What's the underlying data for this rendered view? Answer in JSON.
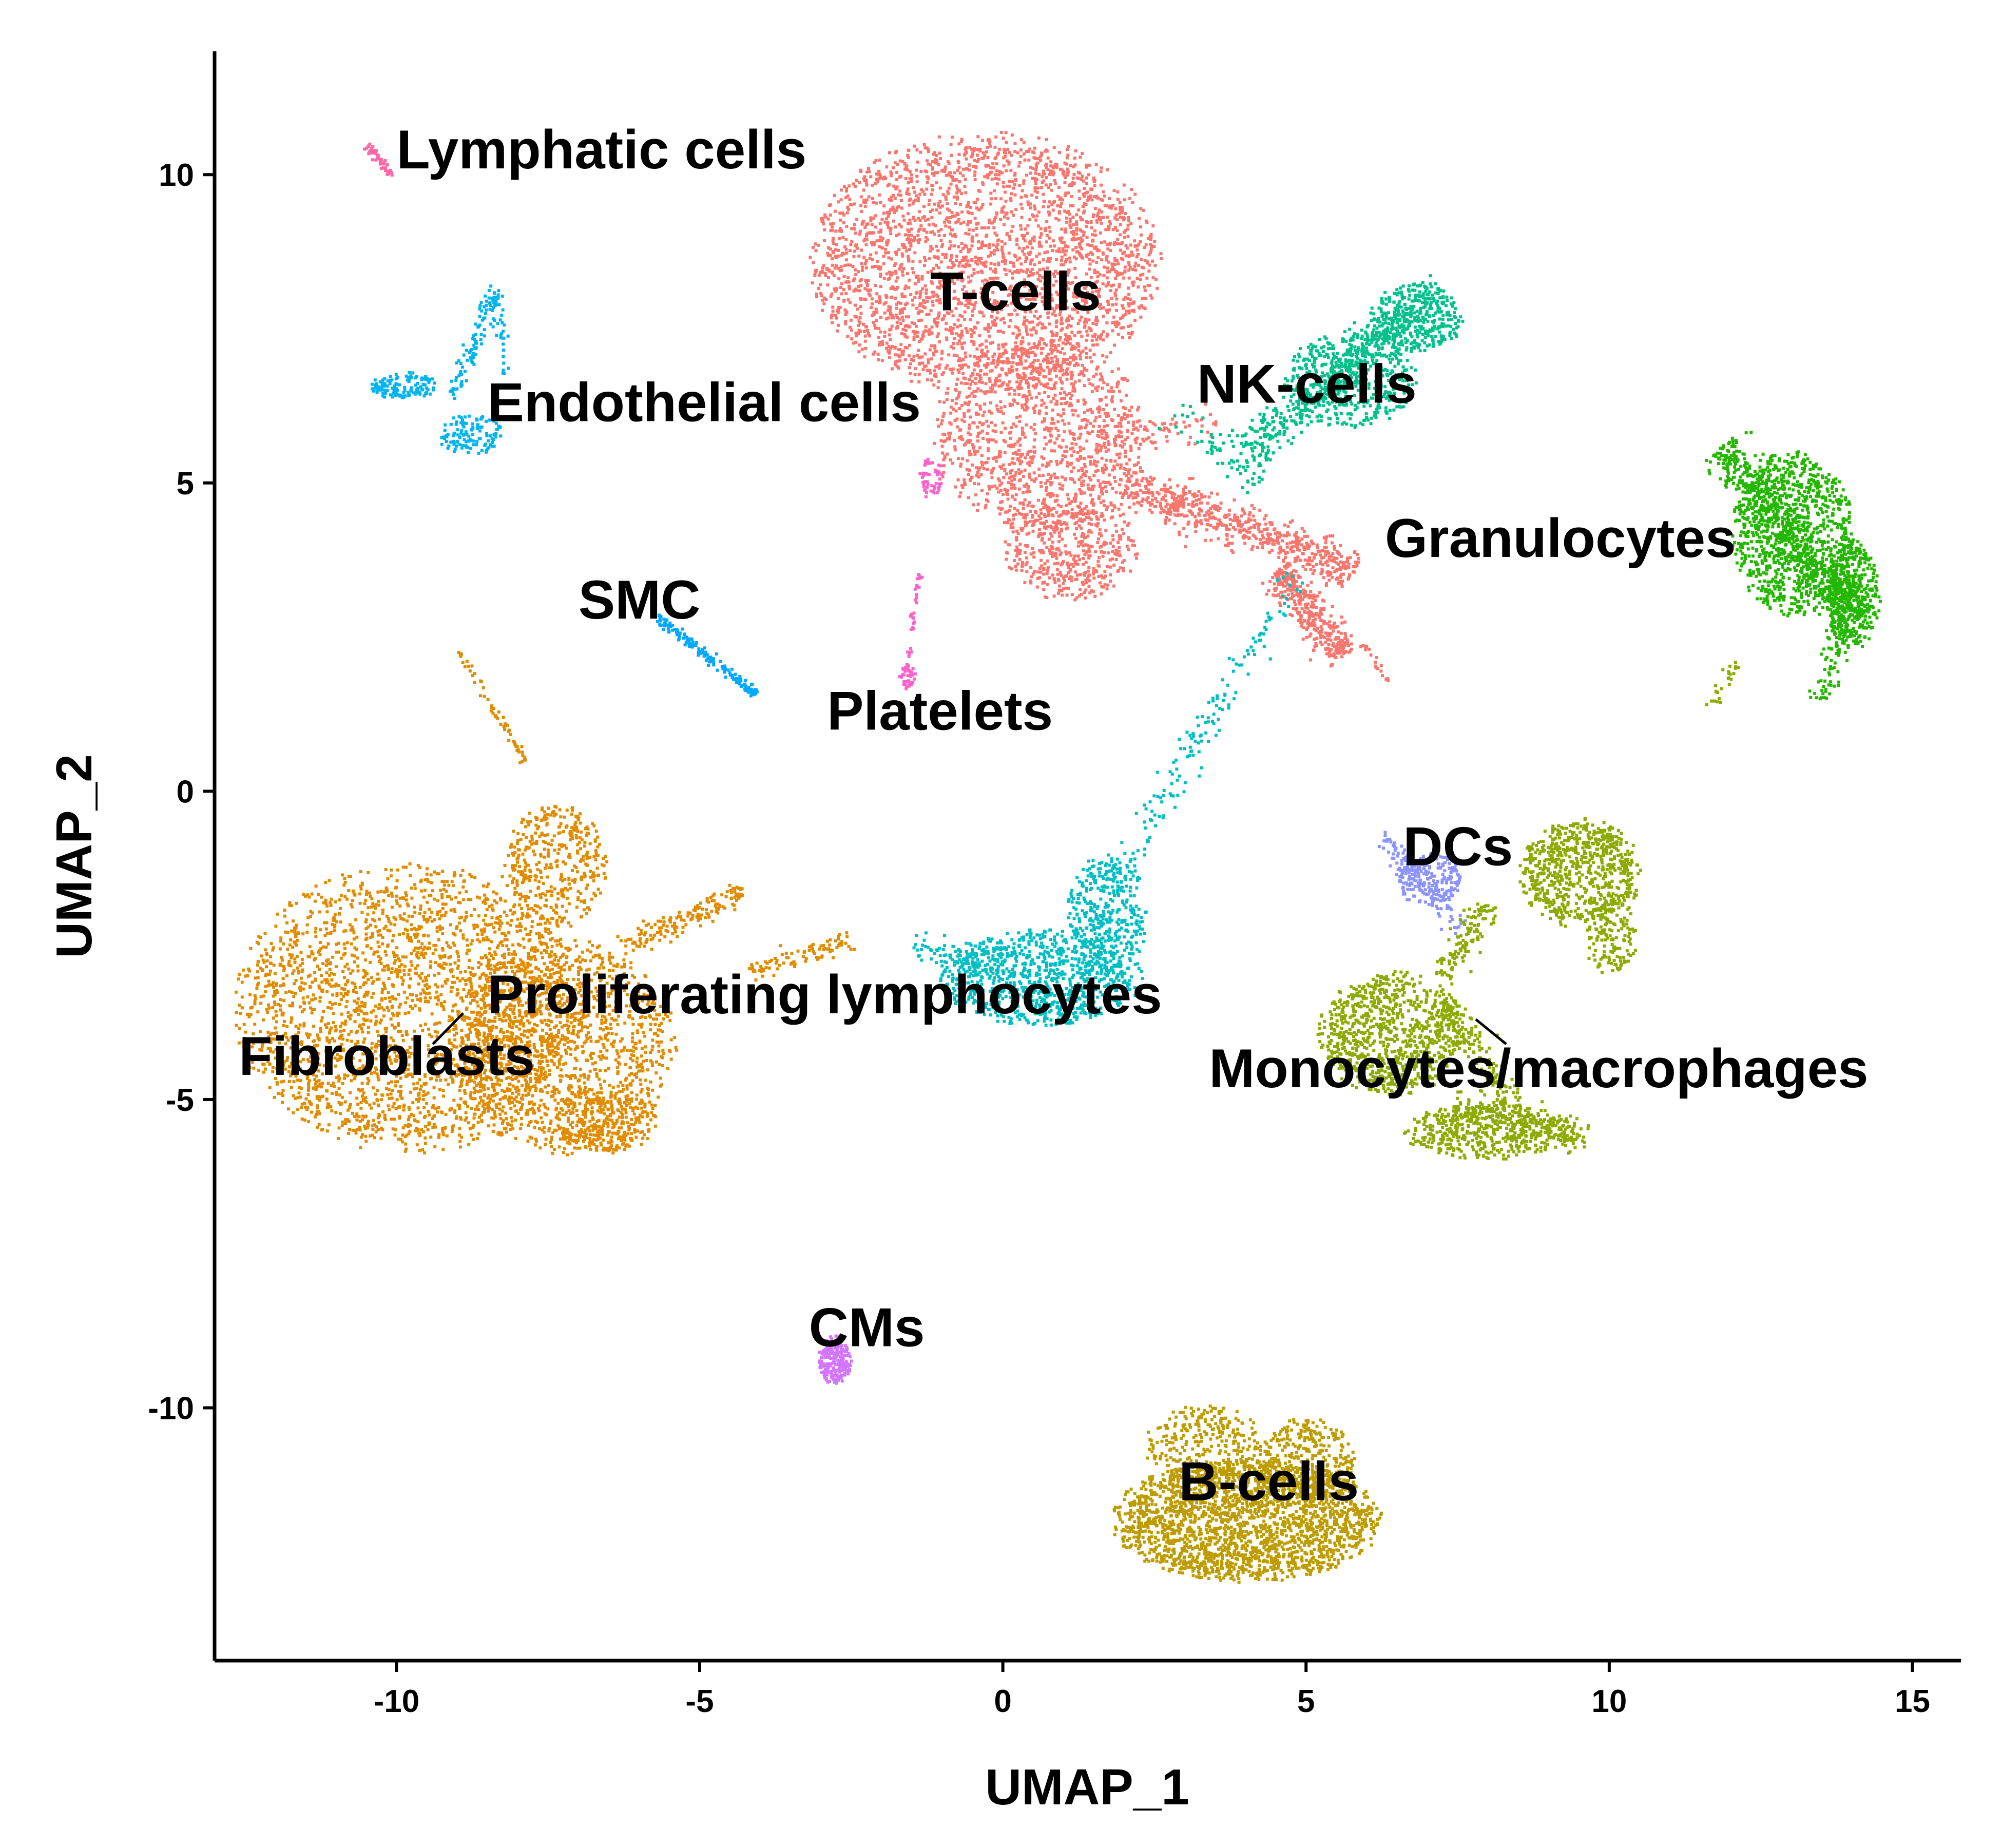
{
  "chart_data": {
    "type": "scatter",
    "title": "",
    "xlabel": "UMAP_1",
    "ylabel": "UMAP_2",
    "xlim": [
      -13,
      15.8
    ],
    "ylim": [
      -14.1,
      12.0
    ],
    "xticks": [
      -10,
      -5,
      0,
      5,
      10,
      15
    ],
    "yticks": [
      -10,
      -5,
      0,
      5,
      10
    ],
    "grid": false,
    "legend": "none",
    "clusters": [
      {
        "name": "Fibroblasts",
        "color": "#E08B00",
        "label_pos": [
          -12.6,
          -4.6
        ],
        "leader": [
          [
            -9.4,
            -4.1
          ],
          [
            -8.9,
            -3.6
          ]
        ],
        "blobs": [
          {
            "cx": -9.8,
            "cy": -3.5,
            "rx": 2.6,
            "ry": 2.1,
            "n": 2600
          },
          {
            "cx": -7.3,
            "cy": -4.1,
            "rx": 1.7,
            "ry": 1.6,
            "n": 1300
          },
          {
            "cx": -7.4,
            "cy": -1.2,
            "rx": 0.8,
            "ry": 0.9,
            "n": 400
          },
          {
            "cx": -6.6,
            "cy": -5.3,
            "rx": 0.8,
            "ry": 0.5,
            "n": 300
          }
        ],
        "streaks": [
          {
            "from": [
              -9.0,
              2.3
            ],
            "to": [
              -7.9,
              0.5
            ],
            "n": 60,
            "w": 0.08
          },
          {
            "from": [
              -6.3,
              -2.5
            ],
            "to": [
              -4.3,
              -1.6
            ],
            "n": 160,
            "w": 0.2
          },
          {
            "from": [
              -4.2,
              -2.9
            ],
            "to": [
              -2.5,
              -2.4
            ],
            "n": 90,
            "w": 0.15
          }
        ]
      },
      {
        "name": "T-cells",
        "color": "#F8766D",
        "label_pos": [
          -1.2,
          7.8
        ],
        "blobs": [
          {
            "cx": -0.3,
            "cy": 8.6,
            "rx": 2.6,
            "ry": 1.9,
            "n": 2800
          },
          {
            "cx": 0.6,
            "cy": 5.8,
            "rx": 1.6,
            "ry": 1.4,
            "n": 1100
          },
          {
            "cx": 1.1,
            "cy": 4.0,
            "rx": 1.0,
            "ry": 0.8,
            "n": 500
          }
        ],
        "streaks": [
          {
            "from": [
              2.0,
              5.0
            ],
            "to": [
              5.8,
              3.6
            ],
            "n": 650,
            "w": 0.35
          },
          {
            "from": [
              4.5,
              3.6
            ],
            "to": [
              5.6,
              2.2
            ],
            "n": 350,
            "w": 0.3
          },
          {
            "from": [
              1.5,
              5.6
            ],
            "to": [
              3.5,
              6.0
            ],
            "n": 80,
            "w": 0.25
          },
          {
            "from": [
              5.9,
              2.4
            ],
            "to": [
              6.4,
              1.8
            ],
            "n": 20,
            "w": 0.08
          }
        ]
      },
      {
        "name": "NK-cells",
        "color": "#00C08B",
        "label_pos": [
          3.2,
          6.3
        ],
        "blobs": [
          {
            "cx": 5.7,
            "cy": 6.7,
            "rx": 1.0,
            "ry": 0.7,
            "n": 450
          },
          {
            "cx": 6.8,
            "cy": 7.7,
            "rx": 0.7,
            "ry": 0.5,
            "n": 300
          }
        ],
        "streaks": [
          {
            "from": [
              4.0,
              5.5
            ],
            "to": [
              7.2,
              8.2
            ],
            "n": 500,
            "w": 0.35
          },
          {
            "from": [
              2.8,
              6.2
            ],
            "to": [
              4.2,
              5.0
            ],
            "n": 60,
            "w": 0.25
          }
        ]
      },
      {
        "name": "Granulocytes",
        "color": "#24B700",
        "label_pos": [
          6.3,
          3.8
        ],
        "blobs": [
          {
            "cx": 13.0,
            "cy": 4.2,
            "rx": 0.9,
            "ry": 1.2,
            "n": 900
          },
          {
            "cx": 14.0,
            "cy": 3.2,
            "rx": 0.4,
            "ry": 0.8,
            "n": 350
          }
        ],
        "streaks": [
          {
            "from": [
              11.8,
              5.6
            ],
            "to": [
              14.1,
              2.8
            ],
            "n": 600,
            "w": 0.35
          },
          {
            "from": [
              13.9,
              3.4
            ],
            "to": [
              13.5,
              1.5
            ],
            "n": 120,
            "w": 0.2
          }
        ]
      },
      {
        "name": "Endothelial cells",
        "color": "#00B4F0",
        "label_pos": [
          -8.5,
          6.0
        ],
        "blobs": [
          {
            "cx": -9.9,
            "cy": 6.6,
            "rx": 0.5,
            "ry": 0.2,
            "n": 120
          },
          {
            "cx": -8.8,
            "cy": 5.8,
            "rx": 0.5,
            "ry": 0.3,
            "n": 120
          }
        ],
        "streaks": [
          {
            "from": [
              -8.4,
              8.2
            ],
            "to": [
              -9.1,
              6.4
            ],
            "n": 90,
            "w": 0.12
          },
          {
            "from": [
              -8.4,
              8.1
            ],
            "to": [
              -8.2,
              6.8
            ],
            "n": 40,
            "w": 0.1
          }
        ]
      },
      {
        "name": "SMC",
        "color": "#00A9FF",
        "label_pos": [
          -7.0,
          2.8
        ],
        "streaks": [
          {
            "from": [
              -5.8,
              2.9
            ],
            "to": [
              -4.1,
              1.6
            ],
            "n": 160,
            "w": 0.08
          }
        ]
      },
      {
        "name": "Platelets",
        "color": "#FF61CC",
        "label_pos": [
          -2.9,
          1.0
        ],
        "blobs": [
          {
            "cx": -1.2,
            "cy": 5.1,
            "rx": 0.2,
            "ry": 0.3,
            "n": 50
          },
          {
            "cx": -1.6,
            "cy": 1.9,
            "rx": 0.12,
            "ry": 0.2,
            "n": 40
          }
        ],
        "streaks": [
          {
            "from": [
              -1.4,
              3.6
            ],
            "to": [
              -1.6,
              2.2
            ],
            "n": 30,
            "w": 0.05
          }
        ]
      },
      {
        "name": "Lymphatic cells",
        "color": "#FF67A4",
        "label_pos": [
          -10.0,
          10.1
        ],
        "streaks": [
          {
            "from": [
              -10.5,
              10.5
            ],
            "to": [
              -10.1,
              10.0
            ],
            "n": 45,
            "w": 0.07
          }
        ]
      },
      {
        "name": "Proliferating lymphocytes",
        "color": "#00BFC4",
        "label_pos": [
          -8.5,
          -3.6
        ],
        "blobs": [
          {
            "cx": 0.6,
            "cy": -3.0,
            "rx": 1.5,
            "ry": 0.7,
            "n": 900
          },
          {
            "cx": 1.7,
            "cy": -2.0,
            "rx": 0.6,
            "ry": 0.9,
            "n": 350
          }
        ],
        "streaks": [
          {
            "from": [
              1.2,
              -2.4
            ],
            "to": [
              4.8,
              3.5
            ],
            "n": 180,
            "w": 0.25
          },
          {
            "from": [
              -1.5,
              -2.5
            ],
            "to": [
              0.0,
              -2.8
            ],
            "n": 80,
            "w": 0.25
          }
        ]
      },
      {
        "name": "DCs",
        "color": "#8B93FF",
        "label_pos": [
          6.6,
          -1.2
        ],
        "blobs": [
          {
            "cx": 7.0,
            "cy": -1.4,
            "rx": 0.5,
            "ry": 0.4,
            "n": 200
          }
        ],
        "streaks": [
          {
            "from": [
              6.2,
              -0.7
            ],
            "to": [
              7.6,
              -2.2
            ],
            "n": 100,
            "w": 0.2
          }
        ]
      },
      {
        "name": "Monocytes/macrophages",
        "color": "#8BAB00",
        "label_pos": [
          3.4,
          -4.8
        ],
        "leader": [
          [
            7.8,
            -3.7
          ],
          [
            8.3,
            -4.1
          ]
        ],
        "blobs": [
          {
            "cx": 6.4,
            "cy": -3.9,
            "rx": 1.1,
            "ry": 0.9,
            "n": 900
          },
          {
            "cx": 9.5,
            "cy": -1.3,
            "rx": 0.9,
            "ry": 0.8,
            "n": 700
          },
          {
            "cx": 8.0,
            "cy": -5.5,
            "rx": 1.3,
            "ry": 0.4,
            "n": 450
          },
          {
            "cx": 10.0,
            "cy": -2.3,
            "rx": 0.4,
            "ry": 0.6,
            "n": 150
          }
        ],
        "streaks": [
          {
            "from": [
              7.4,
              -5.1
            ],
            "to": [
              9.6,
              -5.6
            ],
            "n": 200,
            "w": 0.25
          },
          {
            "from": [
              7.3,
              -3.4
            ],
            "to": [
              8.4,
              -5.2
            ],
            "n": 160,
            "w": 0.25
          },
          {
            "from": [
              8.0,
              -1.8
            ],
            "to": [
              7.2,
              -3.0
            ],
            "n": 120,
            "w": 0.25
          },
          {
            "from": [
              12.1,
              2.1
            ],
            "to": [
              11.6,
              1.4
            ],
            "n": 25,
            "w": 0.1
          }
        ]
      },
      {
        "name": "B-cells",
        "color": "#BE9C00",
        "label_pos": [
          2.9,
          -11.5
        ],
        "blobs": [
          {
            "cx": 4.0,
            "cy": -11.8,
            "rx": 2.0,
            "ry": 0.9,
            "n": 2300
          },
          {
            "cx": 3.3,
            "cy": -10.6,
            "rx": 0.9,
            "ry": 0.6,
            "n": 300
          },
          {
            "cx": 5.0,
            "cy": -10.8,
            "rx": 0.7,
            "ry": 0.6,
            "n": 300
          }
        ]
      },
      {
        "name": "CMs",
        "color": "#D376FF",
        "label_pos": [
          -3.2,
          -9.0
        ],
        "blobs": [
          {
            "cx": -2.8,
            "cy": -9.2,
            "rx": 0.25,
            "ry": 0.35,
            "n": 220
          }
        ]
      }
    ]
  }
}
